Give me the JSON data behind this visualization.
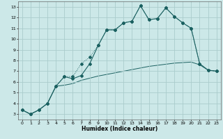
{
  "title": "",
  "xlabel": "Humidex (Indice chaleur)",
  "xlim": [
    -0.5,
    23.5
  ],
  "ylim": [
    2.5,
    13.5
  ],
  "xticks": [
    0,
    1,
    2,
    3,
    4,
    5,
    6,
    7,
    8,
    9,
    10,
    11,
    12,
    13,
    14,
    15,
    16,
    17,
    18,
    19,
    20,
    21,
    22,
    23
  ],
  "yticks": [
    3,
    4,
    5,
    6,
    7,
    8,
    9,
    10,
    11,
    12,
    13
  ],
  "bg_color": "#cce8e8",
  "grid_color": "#aacccc",
  "line_color": "#1a6060",
  "line1_x": [
    0,
    1,
    2,
    3,
    4,
    5,
    6,
    7,
    8,
    9,
    10,
    11,
    12,
    13,
    14,
    15,
    16,
    17,
    18,
    19,
    20,
    21,
    22,
    23
  ],
  "line1_y": [
    3.4,
    3.0,
    3.4,
    4.0,
    5.6,
    6.5,
    6.5,
    7.7,
    8.3,
    9.4,
    10.85,
    10.85,
    11.5,
    11.65,
    13.1,
    11.8,
    11.9,
    12.9,
    12.1,
    11.5,
    11.0,
    7.7,
    7.1,
    7.0
  ],
  "line2_x": [
    0,
    1,
    2,
    3,
    4,
    5,
    6,
    7,
    8,
    9,
    10,
    11,
    12,
    13,
    14,
    15,
    16,
    17,
    18,
    19,
    20,
    21,
    22,
    23
  ],
  "line2_y": [
    3.4,
    3.0,
    3.4,
    4.0,
    5.6,
    6.5,
    6.3,
    6.6,
    7.7,
    9.4,
    10.85,
    10.85,
    11.5,
    11.65,
    13.1,
    11.8,
    11.9,
    12.9,
    12.1,
    11.5,
    11.0,
    7.7,
    7.1,
    7.0
  ],
  "line3_x": [
    0,
    1,
    2,
    3,
    4,
    5,
    6,
    7,
    8,
    9,
    10,
    11,
    12,
    13,
    14,
    15,
    16,
    17,
    18,
    19,
    20,
    21,
    22,
    23
  ],
  "line3_y": [
    3.4,
    3.0,
    3.4,
    4.0,
    5.6,
    5.7,
    5.85,
    6.15,
    6.35,
    6.55,
    6.7,
    6.85,
    7.0,
    7.15,
    7.3,
    7.45,
    7.55,
    7.65,
    7.75,
    7.8,
    7.85,
    7.6,
    7.1,
    7.0
  ]
}
